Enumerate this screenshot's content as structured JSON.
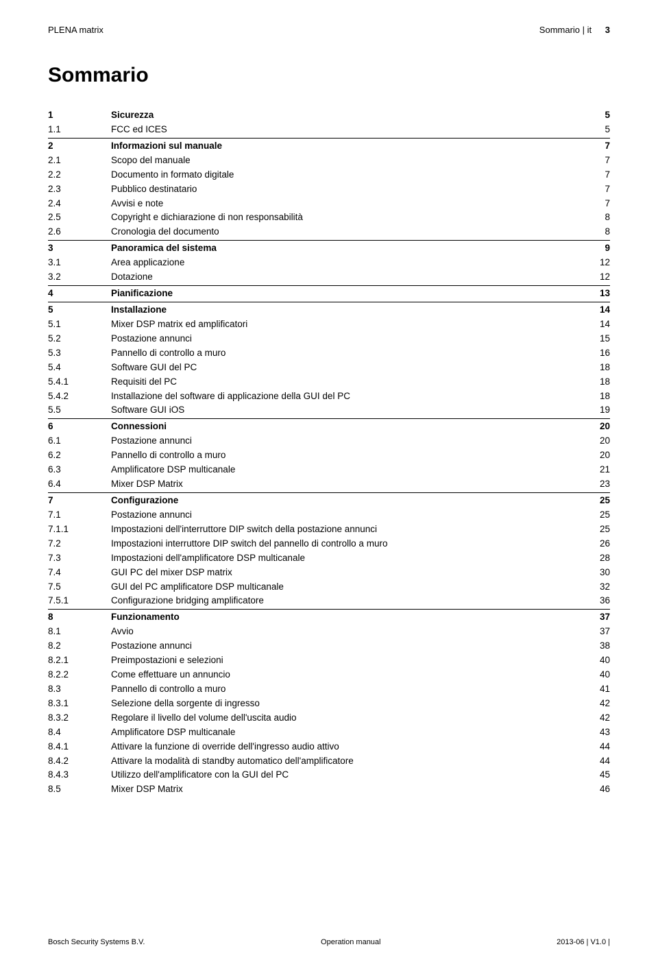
{
  "header": {
    "left": "PLENA matrix",
    "right_section": "Sommario | it",
    "page_number": "3"
  },
  "title": "Sommario",
  "toc": [
    {
      "num": "1",
      "title": "Sicurezza",
      "page": "5",
      "chapter": true,
      "first": true
    },
    {
      "num": "1.1",
      "title": "FCC ed ICES",
      "page": "5"
    },
    {
      "num": "2",
      "title": "Informazioni sul manuale",
      "page": "7",
      "chapter": true
    },
    {
      "num": "2.1",
      "title": "Scopo del manuale",
      "page": "7"
    },
    {
      "num": "2.2",
      "title": "Documento in formato digitale",
      "page": "7"
    },
    {
      "num": "2.3",
      "title": "Pubblico destinatario",
      "page": "7"
    },
    {
      "num": "2.4",
      "title": "Avvisi e note",
      "page": "7"
    },
    {
      "num": "2.5",
      "title": "Copyright e dichiarazione di non responsabilità",
      "page": "8"
    },
    {
      "num": "2.6",
      "title": "Cronologia del documento",
      "page": "8"
    },
    {
      "num": "3",
      "title": "Panoramica del sistema",
      "page": "9",
      "chapter": true
    },
    {
      "num": "3.1",
      "title": "Area applicazione",
      "page": "12"
    },
    {
      "num": "3.2",
      "title": "Dotazione",
      "page": "12"
    },
    {
      "num": "4",
      "title": "Pianificazione",
      "page": "13",
      "chapter": true
    },
    {
      "num": "5",
      "title": "Installazione",
      "page": "14",
      "chapter": true
    },
    {
      "num": "5.1",
      "title": "Mixer DSP matrix ed amplificatori",
      "page": "14"
    },
    {
      "num": "5.2",
      "title": "Postazione annunci",
      "page": "15"
    },
    {
      "num": "5.3",
      "title": "Pannello di controllo a muro",
      "page": "16"
    },
    {
      "num": "5.4",
      "title": "Software GUI del PC",
      "page": "18"
    },
    {
      "num": "5.4.1",
      "title": "Requisiti del PC",
      "page": "18"
    },
    {
      "num": "5.4.2",
      "title": "Installazione del software di applicazione della GUI del PC",
      "page": "18"
    },
    {
      "num": "5.5",
      "title": "Software GUI iOS",
      "page": "19"
    },
    {
      "num": "6",
      "title": "Connessioni",
      "page": "20",
      "chapter": true
    },
    {
      "num": "6.1",
      "title": "Postazione annunci",
      "page": "20"
    },
    {
      "num": "6.2",
      "title": "Pannello di controllo a muro",
      "page": "20"
    },
    {
      "num": "6.3",
      "title": "Amplificatore DSP multicanale",
      "page": "21"
    },
    {
      "num": "6.4",
      "title": "Mixer DSP Matrix",
      "page": "23"
    },
    {
      "num": "7",
      "title": "Configurazione",
      "page": "25",
      "chapter": true
    },
    {
      "num": "7.1",
      "title": "Postazione annunci",
      "page": "25"
    },
    {
      "num": "7.1.1",
      "title": "Impostazioni dell'interruttore DIP switch della postazione annunci",
      "page": "25"
    },
    {
      "num": "7.2",
      "title": "Impostazioni interruttore DIP switch del pannello di controllo a muro",
      "page": "26"
    },
    {
      "num": "7.3",
      "title": "Impostazioni dell'amplificatore DSP multicanale",
      "page": "28"
    },
    {
      "num": "7.4",
      "title": "GUI PC del mixer DSP matrix",
      "page": "30"
    },
    {
      "num": "7.5",
      "title": "GUI del PC amplificatore DSP multicanale",
      "page": "32"
    },
    {
      "num": "7.5.1",
      "title": "Configurazione bridging amplificatore",
      "page": "36"
    },
    {
      "num": "8",
      "title": "Funzionamento",
      "page": "37",
      "chapter": true
    },
    {
      "num": "8.1",
      "title": "Avvio",
      "page": "37"
    },
    {
      "num": "8.2",
      "title": "Postazione annunci",
      "page": "38"
    },
    {
      "num": "8.2.1",
      "title": "Preimpostazioni e selezioni",
      "page": "40"
    },
    {
      "num": "8.2.2",
      "title": "Come effettuare un annuncio",
      "page": "40"
    },
    {
      "num": "8.3",
      "title": "Pannello di controllo a muro",
      "page": "41"
    },
    {
      "num": "8.3.1",
      "title": "Selezione della sorgente di ingresso",
      "page": "42"
    },
    {
      "num": "8.3.2",
      "title": "Regolare il livello del volume dell'uscita audio",
      "page": "42"
    },
    {
      "num": "8.4",
      "title": "Amplificatore DSP multicanale",
      "page": "43"
    },
    {
      "num": "8.4.1",
      "title": "Attivare la funzione di override dell'ingresso audio attivo",
      "page": "44"
    },
    {
      "num": "8.4.2",
      "title": "Attivare la modalità di standby automatico dell'amplificatore",
      "page": "44"
    },
    {
      "num": "8.4.3",
      "title": "Utilizzo dell'amplificatore con la GUI del PC",
      "page": "45"
    },
    {
      "num": "8.5",
      "title": "Mixer DSP Matrix",
      "page": "46"
    }
  ],
  "footer": {
    "left": "Bosch Security Systems B.V.",
    "center": "Operation manual",
    "right": "2013-06 | V1.0 |"
  }
}
